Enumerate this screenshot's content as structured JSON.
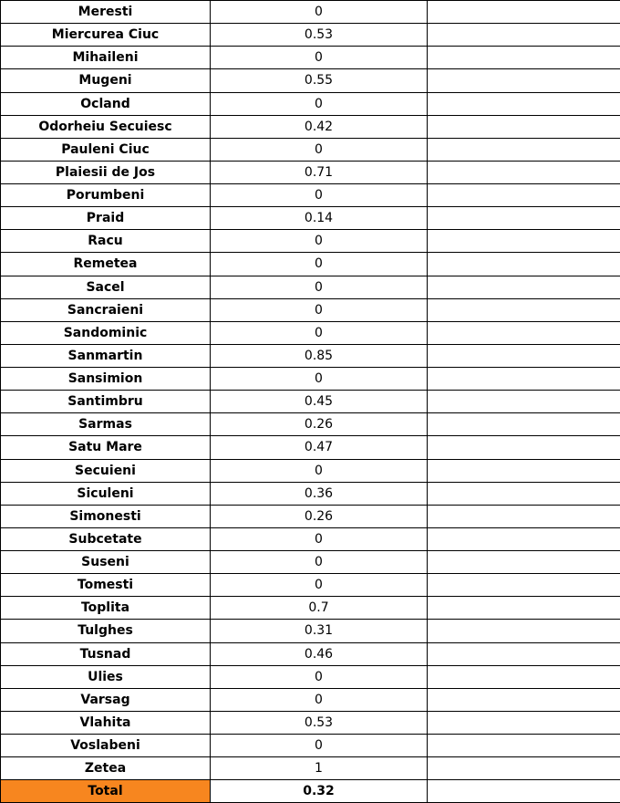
{
  "table": {
    "rows": [
      [
        "Meresti",
        0
      ],
      [
        "Miercurea Ciuc",
        0.53
      ],
      [
        "Mihaileni",
        0
      ],
      [
        "Mugeni",
        0.55
      ],
      [
        "Ocland",
        0
      ],
      [
        "Odorheiu Secuiesc",
        0.42
      ],
      [
        "Pauleni Ciuc",
        0
      ],
      [
        "Plaiesii de Jos",
        0.71
      ],
      [
        "Porumbeni",
        0
      ],
      [
        "Praid",
        0.14
      ],
      [
        "Racu",
        0
      ],
      [
        "Remetea",
        0
      ],
      [
        "Sacel",
        0
      ],
      [
        "Sancraieni",
        0
      ],
      [
        "Sandominic",
        0
      ],
      [
        "Sanmartin",
        0.85
      ],
      [
        "Sansimion",
        0
      ],
      [
        "Santimbru",
        0.45
      ],
      [
        "Sarmas",
        0.26
      ],
      [
        "Satu Mare",
        0.47
      ],
      [
        "Secuieni",
        0
      ],
      [
        "Siculeni",
        0.36
      ],
      [
        "Simonesti",
        0.26
      ],
      [
        "Subcetate",
        0
      ],
      [
        "Suseni",
        0
      ],
      [
        "Tomesti",
        0
      ],
      [
        "Toplita",
        0.7
      ],
      [
        "Tulghes",
        0.31
      ],
      [
        "Tusnad",
        0.46
      ],
      [
        "Ulies",
        0
      ],
      [
        "Varsag",
        0
      ],
      [
        "Vlahita",
        0.53
      ],
      [
        "Voslabeni",
        0
      ],
      [
        "Zetea",
        1
      ]
    ],
    "total": [
      "Total",
      0.32
    ]
  }
}
